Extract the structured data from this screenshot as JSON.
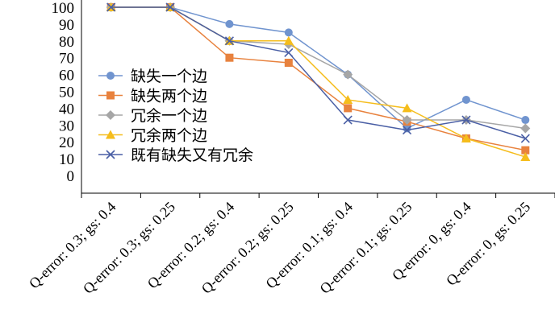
{
  "chart_data": {
    "type": "line",
    "title": "",
    "xlabel": "",
    "ylabel": "",
    "ylim": [
      0,
      100
    ],
    "yticks": [
      0,
      10,
      20,
      30,
      40,
      50,
      60,
      70,
      80,
      90,
      100
    ],
    "grid": false,
    "legend_position": "left",
    "categories": [
      "Q-error: 0.3; gs: 0.4",
      "Q-error: 0.3; gs: 0.25",
      "Q-error: 0.2; gs: 0.4",
      "Q-error: 0.2; gs: 0.25",
      "Q-error: 0.1; gs: 0.4",
      "Q-error: 0.1; gs: 0.25",
      "Q-error: 0, gs: 0.4",
      "Q-error: 0, gs: 0.25"
    ],
    "series": [
      {
        "name": "缺失一个边",
        "color": "#7094cf",
        "marker": "circle",
        "values": [
          100,
          100,
          90,
          85,
          60,
          28,
          45,
          33
        ]
      },
      {
        "name": "缺失两个边",
        "color": "#e8823e",
        "marker": "square",
        "values": [
          100,
          100,
          70,
          67,
          40,
          32,
          22,
          15
        ]
      },
      {
        "name": "冗余一个边",
        "color": "#a6a6a6",
        "marker": "diamond",
        "values": [
          100,
          100,
          80,
          78,
          60,
          33,
          33,
          28
        ]
      },
      {
        "name": "冗余两个边",
        "color": "#f5bd1c",
        "marker": "triangle",
        "values": [
          100,
          100,
          80,
          80,
          45,
          40,
          22,
          11
        ]
      },
      {
        "name": "既有缺失又有冗余",
        "color": "#4a5fa5",
        "marker": "x",
        "values": [
          100,
          100,
          80,
          73,
          33,
          27,
          33,
          22
        ]
      }
    ]
  }
}
